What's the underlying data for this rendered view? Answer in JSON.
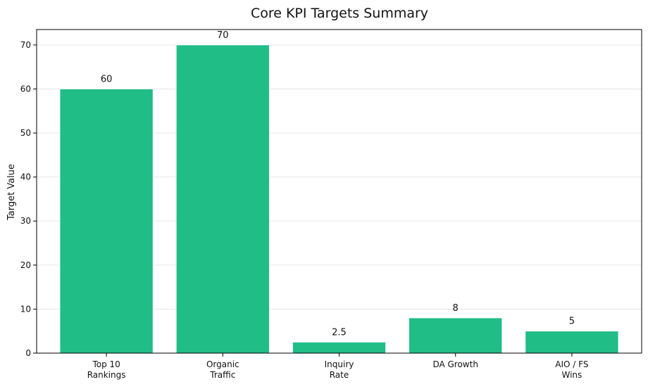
{
  "chart_data": {
    "type": "bar",
    "title": "Core KPI Targets Summary",
    "xlabel": "",
    "ylabel": "Target Value",
    "categories": [
      [
        "Top 10",
        "Rankings"
      ],
      [
        "Organic",
        "Traffic"
      ],
      [
        "Inquiry",
        "Rate"
      ],
      [
        "DA Growth"
      ],
      [
        "AIO / FS",
        "Wins"
      ]
    ],
    "values": [
      60,
      70,
      2.5,
      8,
      5
    ],
    "value_labels": [
      "60",
      "70",
      "2.5",
      "8",
      "5"
    ],
    "ylim": [
      0,
      73.5
    ],
    "yticks": [
      0,
      10,
      20,
      30,
      40,
      50,
      60,
      70
    ],
    "grid": "y",
    "legend": "none",
    "colors": {
      "bar": "#20bd87",
      "bar_edge": "#ffffff",
      "axis": "#000000",
      "grid": "#e6e6e6"
    }
  }
}
